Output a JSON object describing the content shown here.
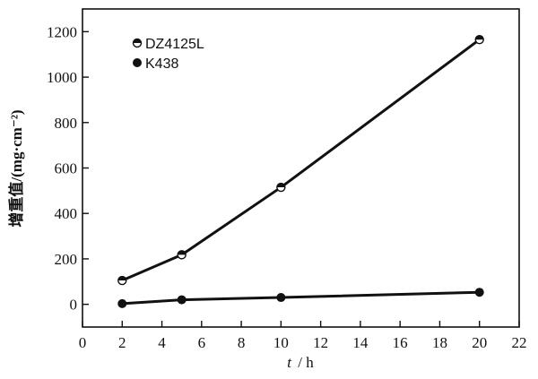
{
  "chart_data": {
    "type": "line",
    "xlabel_var": "t",
    "xlabel_unit": "/ h",
    "ylabel": "增重值/(mg·cm⁻²)",
    "xlim": [
      0,
      22
    ],
    "ylim": [
      -100,
      1300
    ],
    "xticks": [
      0,
      2,
      4,
      6,
      8,
      10,
      12,
      14,
      16,
      18,
      20,
      22
    ],
    "yticks": [
      0,
      200,
      400,
      600,
      800,
      1000,
      1200
    ],
    "grid": false,
    "legend_position": "top-left",
    "series": [
      {
        "name": "DZ4125L",
        "marker": "half-filled-circle",
        "x": [
          2,
          5,
          10,
          20
        ],
        "y": [
          105,
          218,
          515,
          1165
        ]
      },
      {
        "name": "K438",
        "marker": "filled-circle",
        "x": [
          2,
          5,
          10,
          20
        ],
        "y": [
          3,
          20,
          30,
          53
        ]
      }
    ]
  }
}
